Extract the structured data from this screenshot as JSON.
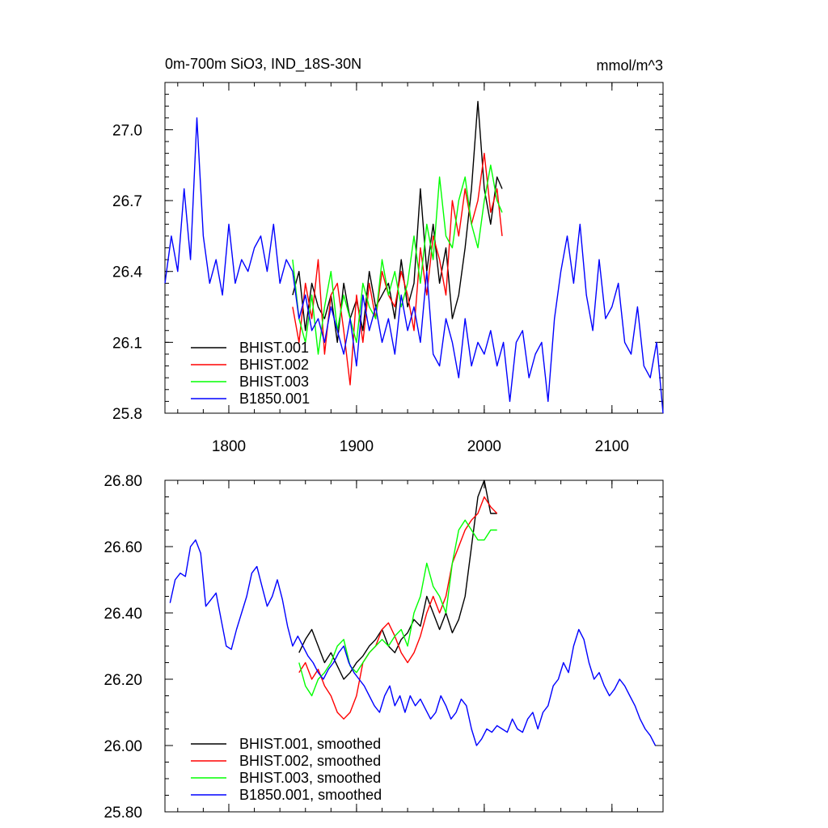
{
  "chart_data": [
    {
      "type": "line",
      "title": "0m-700m SiO3, IND_18S-30N",
      "units": "mmol/m^3",
      "xlim": [
        1750,
        2140
      ],
      "ylim": [
        25.8,
        27.2
      ],
      "xticks": [
        1800,
        1900,
        2000,
        2100
      ],
      "xtick_labels": [
        "1800",
        "1900",
        "2000",
        "2100"
      ],
      "yticks": [
        25.8,
        26.1,
        26.4,
        26.7,
        27.0
      ],
      "ytick_labels": [
        "25.8",
        "26.1",
        "26.4",
        "26.7",
        "27.0"
      ],
      "legend_position": "bottom-left",
      "legend": [
        "BHIST.001",
        "BHIST.002",
        "BHIST.003",
        "B1850.001"
      ],
      "series": [
        {
          "name": "BHIST.001",
          "color": "#000000",
          "x": [
            1850,
            1855,
            1860,
            1865,
            1870,
            1875,
            1880,
            1885,
            1890,
            1895,
            1900,
            1905,
            1910,
            1915,
            1920,
            1925,
            1930,
            1935,
            1940,
            1945,
            1950,
            1955,
            1960,
            1965,
            1970,
            1975,
            1980,
            1985,
            1990,
            1995,
            2000,
            2005,
            2010,
            2014
          ],
          "y": [
            26.3,
            26.4,
            26.15,
            26.35,
            26.25,
            26.2,
            26.3,
            26.1,
            26.35,
            26.2,
            26.28,
            26.15,
            26.4,
            26.25,
            26.3,
            26.35,
            26.2,
            26.45,
            26.25,
            26.35,
            26.75,
            26.4,
            26.6,
            26.35,
            26.5,
            26.2,
            26.3,
            26.5,
            26.75,
            27.12,
            26.75,
            26.6,
            26.8,
            26.75
          ]
        },
        {
          "name": "BHIST.002",
          "color": "#ff0000",
          "x": [
            1850,
            1855,
            1860,
            1865,
            1870,
            1875,
            1880,
            1885,
            1890,
            1895,
            1900,
            1905,
            1910,
            1915,
            1920,
            1925,
            1930,
            1935,
            1940,
            1945,
            1950,
            1955,
            1960,
            1965,
            1970,
            1975,
            1980,
            1985,
            1990,
            1995,
            2000,
            2005,
            2010,
            2014
          ],
          "y": [
            26.25,
            26.1,
            26.35,
            26.2,
            26.45,
            26.05,
            26.3,
            26.35,
            26.15,
            25.92,
            26.3,
            26.1,
            26.35,
            26.2,
            26.4,
            26.3,
            26.25,
            26.4,
            26.3,
            26.15,
            26.5,
            26.3,
            26.55,
            26.45,
            26.3,
            26.7,
            26.55,
            26.75,
            26.6,
            26.7,
            26.9,
            26.65,
            26.75,
            26.55
          ]
        },
        {
          "name": "BHIST.003",
          "color": "#00ff00",
          "x": [
            1850,
            1855,
            1860,
            1865,
            1870,
            1875,
            1880,
            1885,
            1890,
            1895,
            1900,
            1905,
            1910,
            1915,
            1920,
            1925,
            1930,
            1935,
            1940,
            1945,
            1950,
            1955,
            1960,
            1965,
            1970,
            1975,
            1980,
            1985,
            1990,
            1995,
            2000,
            2005,
            2010,
            2014
          ],
          "y": [
            26.45,
            26.2,
            26.1,
            26.3,
            26.05,
            26.25,
            26.4,
            26.15,
            26.3,
            26.2,
            26.1,
            26.35,
            26.25,
            26.2,
            26.45,
            26.3,
            26.4,
            26.25,
            26.35,
            26.55,
            26.35,
            26.6,
            26.45,
            26.8,
            26.55,
            26.5,
            26.7,
            26.8,
            26.6,
            26.5,
            26.7,
            26.85,
            26.7,
            26.65
          ]
        },
        {
          "name": "B1850.001",
          "color": "#0000ff",
          "x": [
            1750,
            1755,
            1760,
            1765,
            1770,
            1775,
            1780,
            1785,
            1790,
            1795,
            1800,
            1805,
            1810,
            1815,
            1820,
            1825,
            1830,
            1835,
            1840,
            1845,
            1850,
            1855,
            1860,
            1865,
            1870,
            1875,
            1880,
            1885,
            1890,
            1895,
            1900,
            1905,
            1910,
            1915,
            1920,
            1925,
            1930,
            1935,
            1940,
            1945,
            1950,
            1955,
            1960,
            1965,
            1970,
            1975,
            1980,
            1985,
            1990,
            1995,
            2000,
            2005,
            2010,
            2015,
            2020,
            2025,
            2030,
            2035,
            2040,
            2045,
            2050,
            2055,
            2060,
            2065,
            2070,
            2075,
            2080,
            2085,
            2090,
            2095,
            2100,
            2105,
            2110,
            2115,
            2120,
            2125,
            2130,
            2135,
            2140
          ],
          "y": [
            26.35,
            26.55,
            26.4,
            26.75,
            26.45,
            27.05,
            26.55,
            26.35,
            26.45,
            26.3,
            26.6,
            26.35,
            26.45,
            26.4,
            26.5,
            26.55,
            26.4,
            26.6,
            26.35,
            26.45,
            26.4,
            26.2,
            26.3,
            26.15,
            26.2,
            26.1,
            26.25,
            26.15,
            26.05,
            26.2,
            26.0,
            26.3,
            26.15,
            26.25,
            26.1,
            26.2,
            26.05,
            26.3,
            26.15,
            26.25,
            26.1,
            26.4,
            26.05,
            26.0,
            26.2,
            26.1,
            25.95,
            26.2,
            26.0,
            26.1,
            26.05,
            26.15,
            26.0,
            26.1,
            25.85,
            26.1,
            26.15,
            25.95,
            26.05,
            26.1,
            25.85,
            26.2,
            26.4,
            26.55,
            26.35,
            26.6,
            26.3,
            26.15,
            26.45,
            26.2,
            26.25,
            26.35,
            26.1,
            26.05,
            26.25,
            26.0,
            25.95,
            26.1,
            25.8
          ]
        }
      ]
    },
    {
      "type": "line",
      "xlim": [
        1750,
        2140
      ],
      "ylim": [
        25.8,
        26.8
      ],
      "xticks": [
        1800,
        1900,
        2000,
        2100
      ],
      "yticks": [
        25.8,
        26.0,
        26.2,
        26.4,
        26.6,
        26.8
      ],
      "ytick_labels": [
        "25.80",
        "26.00",
        "26.20",
        "26.40",
        "26.60",
        "26.80"
      ],
      "legend_position": "bottom-left",
      "legend": [
        "BHIST.001, smoothed",
        "BHIST.002, smoothed",
        "BHIST.003, smoothed",
        "B1850.001, smoothed"
      ],
      "series": [
        {
          "name": "BHIST.001, smoothed",
          "color": "#000000",
          "x": [
            1855,
            1860,
            1865,
            1870,
            1875,
            1880,
            1885,
            1890,
            1895,
            1900,
            1905,
            1910,
            1915,
            1920,
            1925,
            1930,
            1935,
            1940,
            1945,
            1950,
            1955,
            1960,
            1965,
            1970,
            1975,
            1980,
            1985,
            1990,
            1995,
            2000,
            2005,
            2010
          ],
          "y": [
            26.28,
            26.32,
            26.35,
            26.3,
            26.25,
            26.28,
            26.24,
            26.2,
            26.22,
            26.25,
            26.27,
            26.3,
            26.32,
            26.35,
            26.3,
            26.28,
            26.32,
            26.34,
            26.38,
            26.36,
            26.45,
            26.4,
            26.35,
            26.4,
            26.34,
            26.38,
            26.45,
            26.6,
            26.75,
            26.8,
            26.7,
            26.7
          ]
        },
        {
          "name": "BHIST.002, smoothed",
          "color": "#ff0000",
          "x": [
            1855,
            1860,
            1865,
            1870,
            1875,
            1880,
            1885,
            1890,
            1895,
            1900,
            1905,
            1910,
            1915,
            1920,
            1925,
            1930,
            1935,
            1940,
            1945,
            1950,
            1955,
            1960,
            1965,
            1970,
            1975,
            1980,
            1985,
            1990,
            1995,
            2000,
            2005,
            2010
          ],
          "y": [
            26.22,
            26.25,
            26.2,
            26.23,
            26.18,
            26.15,
            26.1,
            26.08,
            26.1,
            26.15,
            26.25,
            26.28,
            26.3,
            26.35,
            26.37,
            26.33,
            26.28,
            26.25,
            26.28,
            26.33,
            26.4,
            26.45,
            26.4,
            26.45,
            26.55,
            26.6,
            26.65,
            26.68,
            26.7,
            26.75,
            26.72,
            26.7
          ]
        },
        {
          "name": "BHIST.003, smoothed",
          "color": "#00ff00",
          "x": [
            1855,
            1860,
            1865,
            1870,
            1875,
            1880,
            1885,
            1890,
            1895,
            1900,
            1905,
            1910,
            1915,
            1920,
            1925,
            1930,
            1935,
            1940,
            1945,
            1950,
            1955,
            1960,
            1965,
            1970,
            1975,
            1980,
            1985,
            1990,
            1995,
            2000,
            2005,
            2010
          ],
          "y": [
            26.25,
            26.18,
            26.15,
            26.2,
            26.22,
            26.25,
            26.3,
            26.32,
            26.24,
            26.22,
            26.25,
            26.28,
            26.3,
            26.32,
            26.3,
            26.33,
            26.35,
            26.3,
            26.4,
            26.45,
            26.55,
            26.48,
            26.45,
            26.4,
            26.55,
            26.65,
            26.68,
            26.65,
            26.62,
            26.62,
            26.65,
            26.65
          ]
        },
        {
          "name": "B1850.001, smoothed",
          "color": "#0000ff",
          "x": [
            1754,
            1758,
            1762,
            1766,
            1770,
            1774,
            1778,
            1782,
            1786,
            1790,
            1794,
            1798,
            1802,
            1806,
            1810,
            1814,
            1818,
            1822,
            1826,
            1830,
            1834,
            1838,
            1842,
            1846,
            1850,
            1854,
            1858,
            1862,
            1866,
            1870,
            1874,
            1878,
            1882,
            1886,
            1890,
            1894,
            1898,
            1902,
            1906,
            1910,
            1914,
            1918,
            1922,
            1926,
            1930,
            1934,
            1938,
            1942,
            1946,
            1950,
            1954,
            1958,
            1962,
            1966,
            1970,
            1974,
            1978,
            1982,
            1986,
            1990,
            1994,
            1998,
            2002,
            2006,
            2010,
            2014,
            2018,
            2022,
            2026,
            2030,
            2034,
            2038,
            2042,
            2046,
            2050,
            2054,
            2058,
            2062,
            2066,
            2070,
            2074,
            2078,
            2082,
            2086,
            2090,
            2094,
            2098,
            2102,
            2106,
            2110,
            2114,
            2118,
            2122,
            2126,
            2130,
            2134
          ],
          "y": [
            26.43,
            26.5,
            26.52,
            26.51,
            26.6,
            26.62,
            26.58,
            26.42,
            26.44,
            26.46,
            26.38,
            26.3,
            26.29,
            26.35,
            26.4,
            26.45,
            26.52,
            26.54,
            26.48,
            26.42,
            26.45,
            26.5,
            26.44,
            26.36,
            26.3,
            26.33,
            26.3,
            26.27,
            26.25,
            26.22,
            26.2,
            26.23,
            26.25,
            26.28,
            26.3,
            26.25,
            26.22,
            26.2,
            26.18,
            26.15,
            26.12,
            26.1,
            26.15,
            26.18,
            26.12,
            26.15,
            26.1,
            26.15,
            26.12,
            26.14,
            26.11,
            26.08,
            26.1,
            26.15,
            26.12,
            26.08,
            26.1,
            26.14,
            26.12,
            26.05,
            26.0,
            26.02,
            26.05,
            26.04,
            26.06,
            26.05,
            26.04,
            26.08,
            26.05,
            26.04,
            26.08,
            26.1,
            26.05,
            26.1,
            26.12,
            26.18,
            26.2,
            26.25,
            26.22,
            26.3,
            26.35,
            26.32,
            26.25,
            26.2,
            26.22,
            26.18,
            26.15,
            26.17,
            26.2,
            26.18,
            26.15,
            26.12,
            26.08,
            26.05,
            26.03,
            26.0
          ]
        }
      ]
    }
  ]
}
